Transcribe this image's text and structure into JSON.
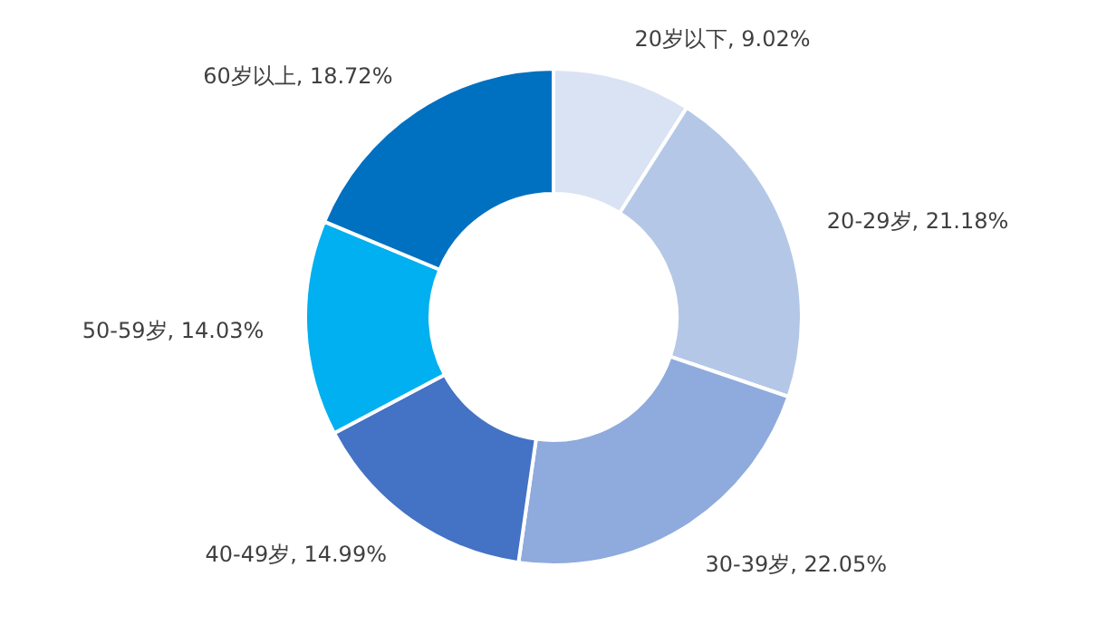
{
  "chart_data": {
    "type": "donut",
    "categories": [
      "20岁以下",
      "20-29岁",
      "30-39岁",
      "40-49岁",
      "50-59岁",
      "60岁以上"
    ],
    "values": [
      9.02,
      21.18,
      22.05,
      14.99,
      14.03,
      18.72
    ],
    "colors": [
      "#dae3f3",
      "#b4c7e7",
      "#8faadc",
      "#4472c4",
      "#00b0f0",
      "#0070c0"
    ],
    "value_labels": [
      "9.02%",
      "21.18%",
      "22.05%",
      "14.99%",
      "14.03%",
      "18.72%"
    ],
    "legend": false
  }
}
